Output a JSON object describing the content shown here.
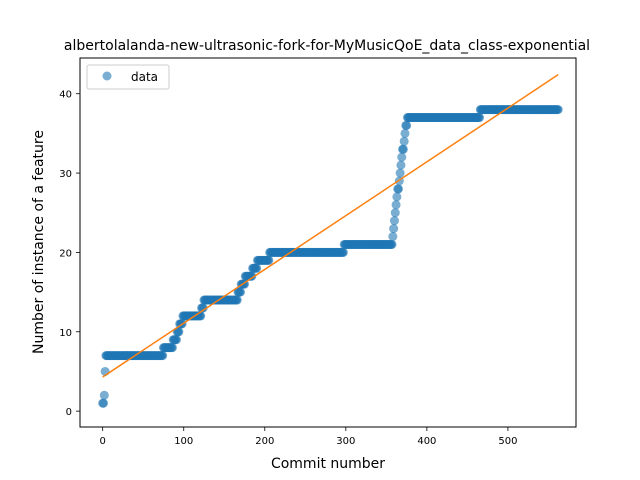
{
  "chart_data": {
    "type": "scatter",
    "title": "albertolalanda-new-ultrasonic-fork-for-MyMusicQoE_data_class-exponential",
    "xlabel": "Commit number",
    "ylabel": "Number of instance of a feature",
    "xlim": [
      -28,
      584
    ],
    "ylim": [
      -2,
      44.5
    ],
    "xticks": [
      0,
      100,
      200,
      300,
      400,
      500
    ],
    "yticks": [
      0,
      10,
      20,
      30,
      40
    ],
    "grid": false,
    "legend": {
      "position": "top-left",
      "entries": [
        "data"
      ]
    },
    "colors": {
      "points": "#1f77b4",
      "fit": "#ff7f0e"
    },
    "steps": [
      {
        "x0": 0,
        "x1": 1,
        "y": 1
      },
      {
        "x0": 2,
        "x1": 2,
        "y": 2
      },
      {
        "x0": 3,
        "x1": 3,
        "y": 5
      },
      {
        "x0": 4,
        "x1": 74,
        "y": 7
      },
      {
        "x0": 75,
        "x1": 86,
        "y": 8
      },
      {
        "x0": 87,
        "x1": 91,
        "y": 9
      },
      {
        "x0": 92,
        "x1": 94,
        "y": 10
      },
      {
        "x0": 95,
        "x1": 98,
        "y": 11
      },
      {
        "x0": 99,
        "x1": 121,
        "y": 12
      },
      {
        "x0": 122,
        "x1": 124,
        "y": 13
      },
      {
        "x0": 125,
        "x1": 166,
        "y": 14
      },
      {
        "x0": 167,
        "x1": 170,
        "y": 15
      },
      {
        "x0": 171,
        "x1": 175,
        "y": 16
      },
      {
        "x0": 176,
        "x1": 184,
        "y": 17
      },
      {
        "x0": 185,
        "x1": 190,
        "y": 18
      },
      {
        "x0": 191,
        "x1": 205,
        "y": 19
      },
      {
        "x0": 206,
        "x1": 297,
        "y": 20
      },
      {
        "x0": 298,
        "x1": 357,
        "y": 21
      },
      {
        "x0": 358,
        "x1": 358,
        "y": 22
      },
      {
        "x0": 359,
        "x1": 359,
        "y": 23
      },
      {
        "x0": 360,
        "x1": 360,
        "y": 24
      },
      {
        "x0": 361,
        "x1": 361,
        "y": 25
      },
      {
        "x0": 362,
        "x1": 362,
        "y": 26
      },
      {
        "x0": 363,
        "x1": 363,
        "y": 27
      },
      {
        "x0": 364,
        "x1": 365,
        "y": 28
      },
      {
        "x0": 366,
        "x1": 366,
        "y": 29
      },
      {
        "x0": 367,
        "x1": 367,
        "y": 30
      },
      {
        "x0": 368,
        "x1": 368,
        "y": 31
      },
      {
        "x0": 369,
        "x1": 369,
        "y": 32
      },
      {
        "x0": 370,
        "x1": 371,
        "y": 33
      },
      {
        "x0": 372,
        "x1": 372,
        "y": 34
      },
      {
        "x0": 373,
        "x1": 373,
        "y": 35
      },
      {
        "x0": 374,
        "x1": 375,
        "y": 36
      },
      {
        "x0": 376,
        "x1": 465,
        "y": 37
      },
      {
        "x0": 466,
        "x1": 562,
        "y": 38
      }
    ],
    "fit_line": [
      {
        "x": 0,
        "y": 4.3
      },
      {
        "x": 562,
        "y": 42.4
      }
    ]
  }
}
